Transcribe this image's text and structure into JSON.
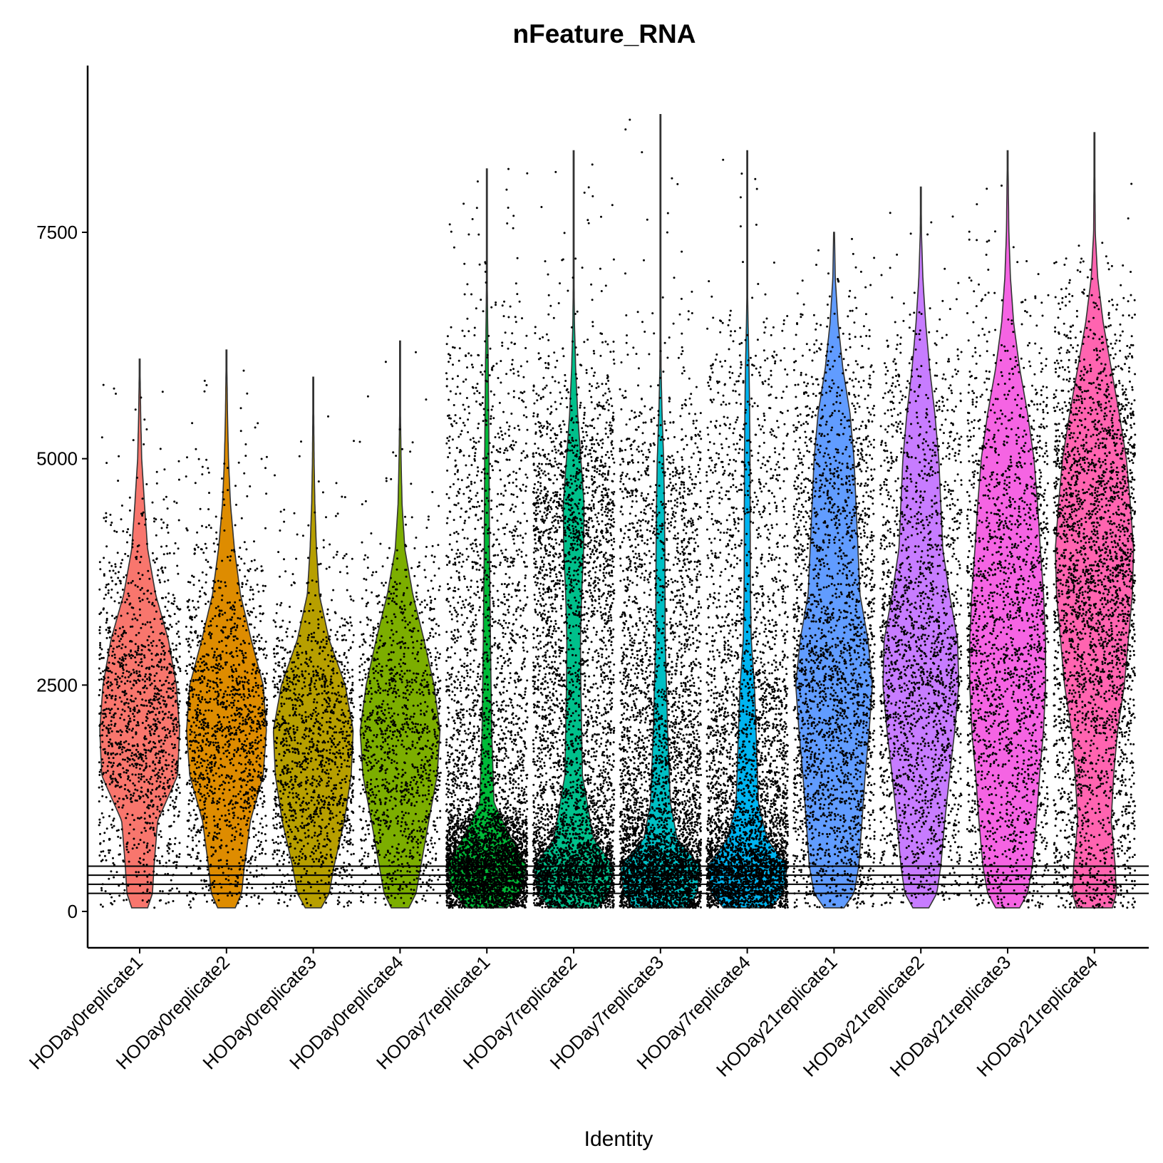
{
  "chart_data": {
    "type": "violin",
    "title": "nFeature_RNA",
    "xlabel": "Identity",
    "ylabel": "",
    "ylim": [
      -400,
      9300
    ],
    "yticks": [
      0,
      2500,
      5000,
      7500
    ],
    "ytick_labels": [
      "0",
      "2500",
      "5000",
      "7500"
    ],
    "grid": false,
    "legend": "none",
    "hlines": [
      200,
      300,
      400,
      500
    ],
    "categories": [
      "HODay0replicate1",
      "HODay0replicate2",
      "HODay0replicate3",
      "HODay0replicate4",
      "HODay7replicate1",
      "HODay7replicate2",
      "HODay7replicate3",
      "HODay7replicate4",
      "HODay21replicate1",
      "HODay21replicate2",
      "HODay21replicate3",
      "HODay21replicate4"
    ],
    "series": [
      {
        "name": "HODay0replicate1",
        "color": "#F8766D",
        "min": 40,
        "max": 6100,
        "points": 1400,
        "profile": [
          [
            40,
            0.2
          ],
          [
            200,
            0.32
          ],
          [
            500,
            0.36
          ],
          [
            1000,
            0.45
          ],
          [
            1500,
            0.95
          ],
          [
            2000,
            1.0
          ],
          [
            2500,
            0.92
          ],
          [
            3000,
            0.72
          ],
          [
            3500,
            0.4
          ],
          [
            4000,
            0.2
          ],
          [
            4500,
            0.12
          ],
          [
            5000,
            0.05
          ],
          [
            5500,
            0.025
          ],
          [
            6100,
            0.005
          ]
        ]
      },
      {
        "name": "HODay0replicate2",
        "color": "#DE8C00",
        "min": 40,
        "max": 6200,
        "points": 1500,
        "profile": [
          [
            40,
            0.22
          ],
          [
            200,
            0.38
          ],
          [
            500,
            0.45
          ],
          [
            1000,
            0.6
          ],
          [
            1500,
            0.92
          ],
          [
            2000,
            1.0
          ],
          [
            2500,
            0.92
          ],
          [
            3000,
            0.62
          ],
          [
            3500,
            0.35
          ],
          [
            4000,
            0.2
          ],
          [
            4500,
            0.1
          ],
          [
            5000,
            0.05
          ],
          [
            5500,
            0.025
          ],
          [
            6200,
            0.005
          ]
        ]
      },
      {
        "name": "HODay0replicate3",
        "color": "#B79F00",
        "min": 40,
        "max": 5900,
        "points": 1400,
        "profile": [
          [
            40,
            0.2
          ],
          [
            200,
            0.4
          ],
          [
            500,
            0.52
          ],
          [
            1000,
            0.78
          ],
          [
            1500,
            0.95
          ],
          [
            2000,
            1.0
          ],
          [
            2500,
            0.8
          ],
          [
            3000,
            0.4
          ],
          [
            3500,
            0.15
          ],
          [
            4000,
            0.08
          ],
          [
            4500,
            0.04
          ],
          [
            5000,
            0.02
          ],
          [
            5900,
            0.004
          ]
        ]
      },
      {
        "name": "HODay0replicate4",
        "color": "#7CAE00",
        "min": 40,
        "max": 6300,
        "points": 1300,
        "profile": [
          [
            40,
            0.22
          ],
          [
            200,
            0.4
          ],
          [
            500,
            0.52
          ],
          [
            1000,
            0.72
          ],
          [
            1500,
            0.93
          ],
          [
            2000,
            1.0
          ],
          [
            2500,
            0.85
          ],
          [
            3000,
            0.6
          ],
          [
            3500,
            0.32
          ],
          [
            4000,
            0.12
          ],
          [
            4500,
            0.05
          ],
          [
            5000,
            0.025
          ],
          [
            5500,
            0.01
          ],
          [
            6300,
            0.004
          ]
        ]
      },
      {
        "name": "HODay7replicate1",
        "color": "#00BA38",
        "min": 40,
        "max": 8200,
        "points": 4500,
        "profile": [
          [
            40,
            0.5
          ],
          [
            200,
            0.86
          ],
          [
            500,
            1.0
          ],
          [
            800,
            0.62
          ],
          [
            1200,
            0.18
          ],
          [
            2000,
            0.12
          ],
          [
            3000,
            0.09
          ],
          [
            4000,
            0.065
          ],
          [
            5000,
            0.055
          ],
          [
            6000,
            0.035
          ],
          [
            6500,
            0.02
          ],
          [
            7000,
            0.008
          ],
          [
            8200,
            0.002
          ]
        ]
      },
      {
        "name": "HODay7replicate2",
        "color": "#00C08B",
        "min": 40,
        "max": 8400,
        "points": 4500,
        "profile": [
          [
            40,
            0.6
          ],
          [
            200,
            0.9
          ],
          [
            500,
            1.0
          ],
          [
            800,
            0.5
          ],
          [
            1500,
            0.22
          ],
          [
            2000,
            0.2
          ],
          [
            2500,
            0.18
          ],
          [
            3000,
            0.17
          ],
          [
            3500,
            0.2
          ],
          [
            4000,
            0.25
          ],
          [
            4500,
            0.26
          ],
          [
            5000,
            0.18
          ],
          [
            5500,
            0.1
          ],
          [
            6000,
            0.05
          ],
          [
            6500,
            0.02
          ],
          [
            7000,
            0.008
          ],
          [
            8400,
            0.002
          ]
        ]
      },
      {
        "name": "HODay7replicate3",
        "color": "#00BFC4",
        "min": 40,
        "max": 8800,
        "points": 4500,
        "profile": [
          [
            40,
            0.7
          ],
          [
            200,
            0.92
          ],
          [
            500,
            1.0
          ],
          [
            800,
            0.42
          ],
          [
            1200,
            0.25
          ],
          [
            2000,
            0.18
          ],
          [
            3000,
            0.12
          ],
          [
            4000,
            0.11
          ],
          [
            4500,
            0.1
          ],
          [
            5000,
            0.08
          ],
          [
            5500,
            0.04
          ],
          [
            6000,
            0.015
          ],
          [
            7000,
            0.004
          ],
          [
            8800,
            0.001
          ]
        ]
      },
      {
        "name": "HODay7replicate4",
        "color": "#00B4F0",
        "min": 40,
        "max": 8400,
        "points": 4000,
        "profile": [
          [
            40,
            0.6
          ],
          [
            200,
            0.9
          ],
          [
            500,
            1.0
          ],
          [
            800,
            0.5
          ],
          [
            1200,
            0.28
          ],
          [
            2000,
            0.22
          ],
          [
            2500,
            0.18
          ],
          [
            3000,
            0.1
          ],
          [
            3500,
            0.08
          ],
          [
            4000,
            0.075
          ],
          [
            5000,
            0.07
          ],
          [
            5500,
            0.06
          ],
          [
            6000,
            0.045
          ],
          [
            6500,
            0.02
          ],
          [
            7000,
            0.005
          ],
          [
            8400,
            0.001
          ]
        ]
      },
      {
        "name": "HODay21replicate1",
        "color": "#619CFF",
        "min": 40,
        "max": 7500,
        "points": 2500,
        "profile": [
          [
            40,
            0.25
          ],
          [
            200,
            0.5
          ],
          [
            500,
            0.62
          ],
          [
            1000,
            0.7
          ],
          [
            1500,
            0.78
          ],
          [
            2000,
            0.88
          ],
          [
            2500,
            0.96
          ],
          [
            3000,
            0.85
          ],
          [
            3500,
            0.65
          ],
          [
            4000,
            0.6
          ],
          [
            5000,
            0.5
          ],
          [
            5500,
            0.4
          ],
          [
            6000,
            0.22
          ],
          [
            6500,
            0.1
          ],
          [
            7000,
            0.03
          ],
          [
            7500,
            0.01
          ]
        ]
      },
      {
        "name": "HODay21replicate2",
        "color": "#C77CFF",
        "min": 40,
        "max": 8000,
        "points": 2000,
        "profile": [
          [
            40,
            0.2
          ],
          [
            200,
            0.4
          ],
          [
            500,
            0.5
          ],
          [
            1000,
            0.6
          ],
          [
            1500,
            0.72
          ],
          [
            2000,
            0.85
          ],
          [
            2500,
            0.95
          ],
          [
            3000,
            0.92
          ],
          [
            3500,
            0.72
          ],
          [
            4000,
            0.55
          ],
          [
            5000,
            0.45
          ],
          [
            5500,
            0.35
          ],
          [
            6000,
            0.22
          ],
          [
            6500,
            0.12
          ],
          [
            7000,
            0.05
          ],
          [
            7500,
            0.015
          ],
          [
            8000,
            0.005
          ]
        ]
      },
      {
        "name": "HODay21replicate3",
        "color": "#F564E3",
        "min": 40,
        "max": 8400,
        "points": 2000,
        "profile": [
          [
            40,
            0.3
          ],
          [
            200,
            0.5
          ],
          [
            500,
            0.62
          ],
          [
            1000,
            0.72
          ],
          [
            1500,
            0.8
          ],
          [
            2000,
            0.9
          ],
          [
            2500,
            0.95
          ],
          [
            3000,
            0.95
          ],
          [
            3500,
            0.9
          ],
          [
            4000,
            0.82
          ],
          [
            4500,
            0.75
          ],
          [
            5000,
            0.66
          ],
          [
            5500,
            0.5
          ],
          [
            6000,
            0.3
          ],
          [
            6500,
            0.15
          ],
          [
            7000,
            0.07
          ],
          [
            7500,
            0.03
          ],
          [
            8400,
            0.006
          ]
        ]
      },
      {
        "name": "HODay21replicate4",
        "color": "#FF64B0",
        "min": 40,
        "max": 8600,
        "points": 3000,
        "profile": [
          [
            40,
            0.45
          ],
          [
            200,
            0.55
          ],
          [
            500,
            0.52
          ],
          [
            1000,
            0.42
          ],
          [
            1500,
            0.48
          ],
          [
            2000,
            0.58
          ],
          [
            2500,
            0.75
          ],
          [
            3000,
            0.85
          ],
          [
            3500,
            0.95
          ],
          [
            4000,
            0.98
          ],
          [
            4500,
            0.9
          ],
          [
            5000,
            0.8
          ],
          [
            5500,
            0.62
          ],
          [
            6000,
            0.42
          ],
          [
            6500,
            0.22
          ],
          [
            7000,
            0.08
          ],
          [
            7500,
            0.02
          ],
          [
            8600,
            0.004
          ]
        ]
      }
    ]
  }
}
